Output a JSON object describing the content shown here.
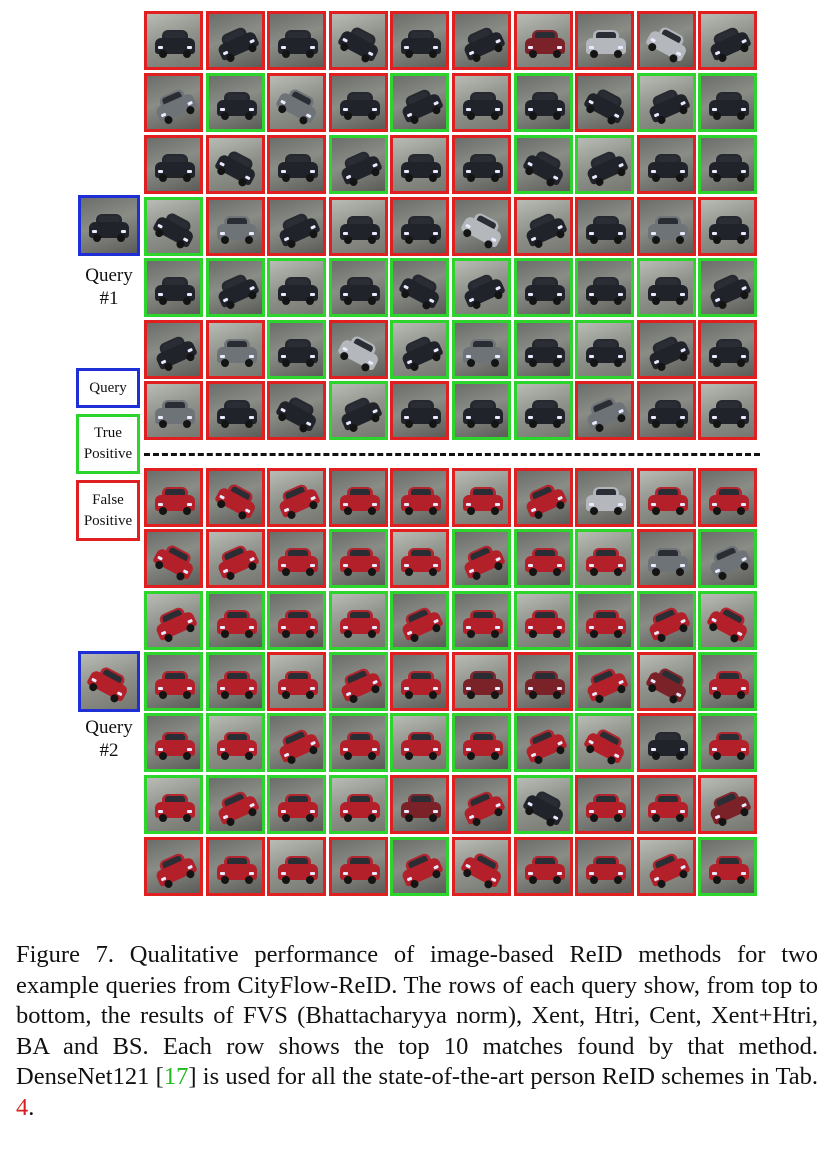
{
  "figure": {
    "query1": {
      "label_line1": "Query",
      "label_line2": "#1",
      "color": "dark",
      "rows": [
        {
          "method": "FVS (Bhattacharyya norm)",
          "results": [
            {
              "m": "fp",
              "c": "dk"
            },
            {
              "m": "fp",
              "c": "dk"
            },
            {
              "m": "fp",
              "c": "dk"
            },
            {
              "m": "fp",
              "c": "dk"
            },
            {
              "m": "fp",
              "c": "dk"
            },
            {
              "m": "fp",
              "c": "dk"
            },
            {
              "m": "fp",
              "c": "mr"
            },
            {
              "m": "fp",
              "c": "sv"
            },
            {
              "m": "fp",
              "c": "sv"
            },
            {
              "m": "fp",
              "c": "dk"
            }
          ]
        },
        {
          "method": "Xent",
          "results": [
            {
              "m": "fp",
              "c": "gy"
            },
            {
              "m": "tp",
              "c": "dk"
            },
            {
              "m": "fp",
              "c": "gy"
            },
            {
              "m": "fp",
              "c": "dk"
            },
            {
              "m": "tp",
              "c": "dk"
            },
            {
              "m": "fp",
              "c": "dk"
            },
            {
              "m": "tp",
              "c": "dk"
            },
            {
              "m": "fp",
              "c": "dk"
            },
            {
              "m": "tp",
              "c": "dk"
            },
            {
              "m": "tp",
              "c": "dk"
            }
          ]
        },
        {
          "method": "Htri",
          "results": [
            {
              "m": "fp",
              "c": "dk"
            },
            {
              "m": "fp",
              "c": "dk"
            },
            {
              "m": "fp",
              "c": "dk"
            },
            {
              "m": "tp",
              "c": "dk"
            },
            {
              "m": "fp",
              "c": "dk"
            },
            {
              "m": "fp",
              "c": "dk"
            },
            {
              "m": "tp",
              "c": "dk"
            },
            {
              "m": "tp",
              "c": "dk"
            },
            {
              "m": "fp",
              "c": "dk"
            },
            {
              "m": "tp",
              "c": "dk"
            }
          ]
        },
        {
          "method": "Cent",
          "results": [
            {
              "m": "tp",
              "c": "dk"
            },
            {
              "m": "fp",
              "c": "gy"
            },
            {
              "m": "fp",
              "c": "dk"
            },
            {
              "m": "fp",
              "c": "dk"
            },
            {
              "m": "fp",
              "c": "dk"
            },
            {
              "m": "fp",
              "c": "sv"
            },
            {
              "m": "fp",
              "c": "dk"
            },
            {
              "m": "fp",
              "c": "dk"
            },
            {
              "m": "fp",
              "c": "gy"
            },
            {
              "m": "fp",
              "c": "dk"
            }
          ]
        },
        {
          "method": "Xent+Htri",
          "results": [
            {
              "m": "tp",
              "c": "dk"
            },
            {
              "m": "tp",
              "c": "dk"
            },
            {
              "m": "tp",
              "c": "dk"
            },
            {
              "m": "tp",
              "c": "dk"
            },
            {
              "m": "tp",
              "c": "dk"
            },
            {
              "m": "tp",
              "c": "dk"
            },
            {
              "m": "tp",
              "c": "dk"
            },
            {
              "m": "tp",
              "c": "dk"
            },
            {
              "m": "tp",
              "c": "dk"
            },
            {
              "m": "tp",
              "c": "dk"
            }
          ]
        },
        {
          "method": "BA",
          "results": [
            {
              "m": "fp",
              "c": "dk"
            },
            {
              "m": "fp",
              "c": "gy"
            },
            {
              "m": "tp",
              "c": "dk"
            },
            {
              "m": "fp",
              "c": "sv"
            },
            {
              "m": "tp",
              "c": "dk"
            },
            {
              "m": "tp",
              "c": "gy"
            },
            {
              "m": "tp",
              "c": "dk"
            },
            {
              "m": "tp",
              "c": "dk"
            },
            {
              "m": "fp",
              "c": "dk"
            },
            {
              "m": "fp",
              "c": "dk"
            }
          ]
        },
        {
          "method": "BS",
          "results": [
            {
              "m": "fp",
              "c": "gy"
            },
            {
              "m": "fp",
              "c": "dk"
            },
            {
              "m": "fp",
              "c": "dk"
            },
            {
              "m": "tp",
              "c": "dk"
            },
            {
              "m": "fp",
              "c": "dk"
            },
            {
              "m": "tp",
              "c": "dk"
            },
            {
              "m": "tp",
              "c": "dk"
            },
            {
              "m": "fp",
              "c": "gy"
            },
            {
              "m": "fp",
              "c": "dk"
            },
            {
              "m": "fp",
              "c": "dk"
            }
          ]
        }
      ]
    },
    "query2": {
      "label_line1": "Query",
      "label_line2": "#2",
      "color": "red",
      "rows": [
        {
          "method": "FVS (Bhattacharyya norm)",
          "results": [
            {
              "m": "fp",
              "c": "rd"
            },
            {
              "m": "fp",
              "c": "rd"
            },
            {
              "m": "fp",
              "c": "rd"
            },
            {
              "m": "fp",
              "c": "rd"
            },
            {
              "m": "fp",
              "c": "rd"
            },
            {
              "m": "fp",
              "c": "rd"
            },
            {
              "m": "fp",
              "c": "rd"
            },
            {
              "m": "fp",
              "c": "sv"
            },
            {
              "m": "fp",
              "c": "rd"
            },
            {
              "m": "fp",
              "c": "rd"
            }
          ]
        },
        {
          "method": "Xent",
          "results": [
            {
              "m": "fp",
              "c": "rd"
            },
            {
              "m": "fp",
              "c": "rd"
            },
            {
              "m": "fp",
              "c": "rd"
            },
            {
              "m": "tp",
              "c": "rd"
            },
            {
              "m": "fp",
              "c": "rd"
            },
            {
              "m": "tp",
              "c": "rd"
            },
            {
              "m": "tp",
              "c": "rd"
            },
            {
              "m": "tp",
              "c": "rd"
            },
            {
              "m": "fp",
              "c": "gy"
            },
            {
              "m": "tp",
              "c": "gy"
            }
          ]
        },
        {
          "method": "Htri",
          "results": [
            {
              "m": "tp",
              "c": "rd"
            },
            {
              "m": "tp",
              "c": "rd"
            },
            {
              "m": "tp",
              "c": "rd"
            },
            {
              "m": "tp",
              "c": "rd"
            },
            {
              "m": "tp",
              "c": "rd"
            },
            {
              "m": "tp",
              "c": "rd"
            },
            {
              "m": "tp",
              "c": "rd"
            },
            {
              "m": "tp",
              "c": "rd"
            },
            {
              "m": "tp",
              "c": "rd"
            },
            {
              "m": "tp",
              "c": "rd"
            }
          ]
        },
        {
          "method": "Cent",
          "results": [
            {
              "m": "tp",
              "c": "rd"
            },
            {
              "m": "tp",
              "c": "rd"
            },
            {
              "m": "fp",
              "c": "rd"
            },
            {
              "m": "tp",
              "c": "rd"
            },
            {
              "m": "fp",
              "c": "rd"
            },
            {
              "m": "fp",
              "c": "mr"
            },
            {
              "m": "fp",
              "c": "mr"
            },
            {
              "m": "tp",
              "c": "rd"
            },
            {
              "m": "fp",
              "c": "mr"
            },
            {
              "m": "tp",
              "c": "rd"
            }
          ]
        },
        {
          "method": "Xent+Htri",
          "results": [
            {
              "m": "tp",
              "c": "rd"
            },
            {
              "m": "tp",
              "c": "rd"
            },
            {
              "m": "tp",
              "c": "rd"
            },
            {
              "m": "tp",
              "c": "rd"
            },
            {
              "m": "tp",
              "c": "rd"
            },
            {
              "m": "tp",
              "c": "rd"
            },
            {
              "m": "tp",
              "c": "rd"
            },
            {
              "m": "tp",
              "c": "rd"
            },
            {
              "m": "fp",
              "c": "dk"
            },
            {
              "m": "tp",
              "c": "rd"
            }
          ]
        },
        {
          "method": "BA",
          "results": [
            {
              "m": "tp",
              "c": "rd"
            },
            {
              "m": "tp",
              "c": "rd"
            },
            {
              "m": "tp",
              "c": "rd"
            },
            {
              "m": "tp",
              "c": "rd"
            },
            {
              "m": "fp",
              "c": "mr"
            },
            {
              "m": "fp",
              "c": "rd"
            },
            {
              "m": "tp",
              "c": "dk"
            },
            {
              "m": "fp",
              "c": "rd"
            },
            {
              "m": "fp",
              "c": "rd"
            },
            {
              "m": "fp",
              "c": "mr"
            }
          ]
        },
        {
          "method": "BS",
          "results": [
            {
              "m": "fp",
              "c": "rd"
            },
            {
              "m": "fp",
              "c": "rd"
            },
            {
              "m": "fp",
              "c": "rd"
            },
            {
              "m": "fp",
              "c": "rd"
            },
            {
              "m": "tp",
              "c": "rd"
            },
            {
              "m": "fp",
              "c": "rd"
            },
            {
              "m": "fp",
              "c": "rd"
            },
            {
              "m": "fp",
              "c": "rd"
            },
            {
              "m": "fp",
              "c": "rd"
            },
            {
              "m": "tp",
              "c": "rd"
            }
          ]
        }
      ]
    }
  },
  "legend": {
    "query": "Query",
    "true_positive_line1": "True",
    "true_positive_line2": "Positive",
    "false_positive_line1": "False",
    "false_positive_line2": "Positive",
    "colors": {
      "query": "#1f2fd6",
      "true_positive": "#2cd42c",
      "false_positive": "#e02020"
    }
  },
  "caption": {
    "part1": "Figure 7. Qualitative performance of image-based ReID methods for two example queries from CityFlow-ReID. The rows of each query show, from top to bottom, the results of FVS (Bhattacharyya norm), Xent, Htri, Cent, Xent+Htri, BA and BS. Each row shows the top 10 matches found by that method. DenseNet121 [",
    "ref": "17",
    "part2": "] is used for all the state-of-the-art person ReID schemes in Tab. ",
    "tab": "4",
    "part3": "."
  }
}
